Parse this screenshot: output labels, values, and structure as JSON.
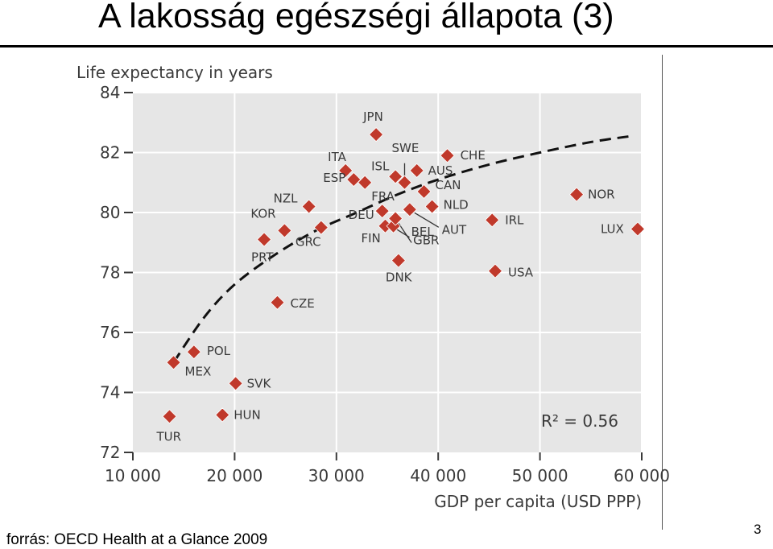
{
  "slide": {
    "title": "A lakosság egészségi állapota (3)",
    "source": "forrás: OECD Health at a Glance 2009",
    "page_number": "3"
  },
  "chart_data": {
    "type": "scatter",
    "xlabel": "GDP per capita (USD PPP)",
    "ylabel": "Life expectancy in years",
    "xlim": [
      10000,
      60000
    ],
    "ylim": [
      72,
      84
    ],
    "x_ticks": [
      10000,
      20000,
      30000,
      40000,
      50000,
      60000
    ],
    "x_tick_labels": [
      "10 000",
      "20 000",
      "30 000",
      "40 000",
      "50 000",
      "60 000"
    ],
    "y_ticks": [
      72,
      74,
      76,
      78,
      80,
      82,
      84
    ],
    "y_tick_labels": [
      "72",
      "74",
      "76",
      "78",
      "80",
      "82",
      "84"
    ],
    "grid": true,
    "annotation": "R² = 0.56",
    "colors": {
      "point": "#c0392b",
      "plot_bg": "#e6e6e6",
      "grid": "#ffffff",
      "trend": "#111111"
    },
    "trend": {
      "style": "dashed",
      "x": [
        14000,
        17000,
        20000,
        24000,
        28000,
        32000,
        36000,
        40000,
        45000,
        50000,
        55000,
        59000
      ],
      "y": [
        75.0,
        76.5,
        77.6,
        78.6,
        79.4,
        80.0,
        80.6,
        81.1,
        81.6,
        82.0,
        82.35,
        82.55
      ]
    },
    "points": [
      {
        "label": "TUR",
        "x": 13600,
        "y": 73.2
      },
      {
        "label": "MEX",
        "x": 14000,
        "y": 75.0
      },
      {
        "label": "POL",
        "x": 16000,
        "y": 75.35
      },
      {
        "label": "HUN",
        "x": 18800,
        "y": 73.25
      },
      {
        "label": "SVK",
        "x": 20100,
        "y": 74.3
      },
      {
        "label": "PRT",
        "x": 22900,
        "y": 79.1
      },
      {
        "label": "CZE",
        "x": 24200,
        "y": 77.0
      },
      {
        "label": "KOR",
        "x": 24900,
        "y": 79.4
      },
      {
        "label": "NZL",
        "x": 27300,
        "y": 80.2
      },
      {
        "label": "GRC",
        "x": 28500,
        "y": 79.5
      },
      {
        "label": "ITA",
        "x": 30900,
        "y": 81.4
      },
      {
        "label": "ESP",
        "x": 31700,
        "y": 81.1
      },
      {
        "label": "JPN",
        "x": 33900,
        "y": 82.6
      },
      {
        "label": "FRA",
        "x": 32800,
        "y": 81.0
      },
      {
        "label": "DEU",
        "x": 34500,
        "y": 80.05
      },
      {
        "label": "FIN",
        "x": 34800,
        "y": 79.55
      },
      {
        "label": "ISL",
        "x": 35800,
        "y": 81.2
      },
      {
        "label": "SWE",
        "x": 36700,
        "y": 81.0
      },
      {
        "label": "BEL",
        "x": 35600,
        "y": 79.55
      },
      {
        "label": "GBR",
        "x": 35800,
        "y": 79.8
      },
      {
        "label": "DNK",
        "x": 36100,
        "y": 78.4
      },
      {
        "label": "AUS",
        "x": 37900,
        "y": 81.4
      },
      {
        "label": "CAN",
        "x": 38600,
        "y": 80.7
      },
      {
        "label": "AUT",
        "x": 37200,
        "y": 80.1
      },
      {
        "label": "NLD",
        "x": 39400,
        "y": 80.2
      },
      {
        "label": "CHE",
        "x": 40900,
        "y": 81.9
      },
      {
        "label": "IRL",
        "x": 45300,
        "y": 79.75
      },
      {
        "label": "USA",
        "x": 45600,
        "y": 78.05
      },
      {
        "label": "NOR",
        "x": 53600,
        "y": 80.6
      },
      {
        "label": "LUX",
        "x": 59600,
        "y": 79.45
      }
    ]
  }
}
